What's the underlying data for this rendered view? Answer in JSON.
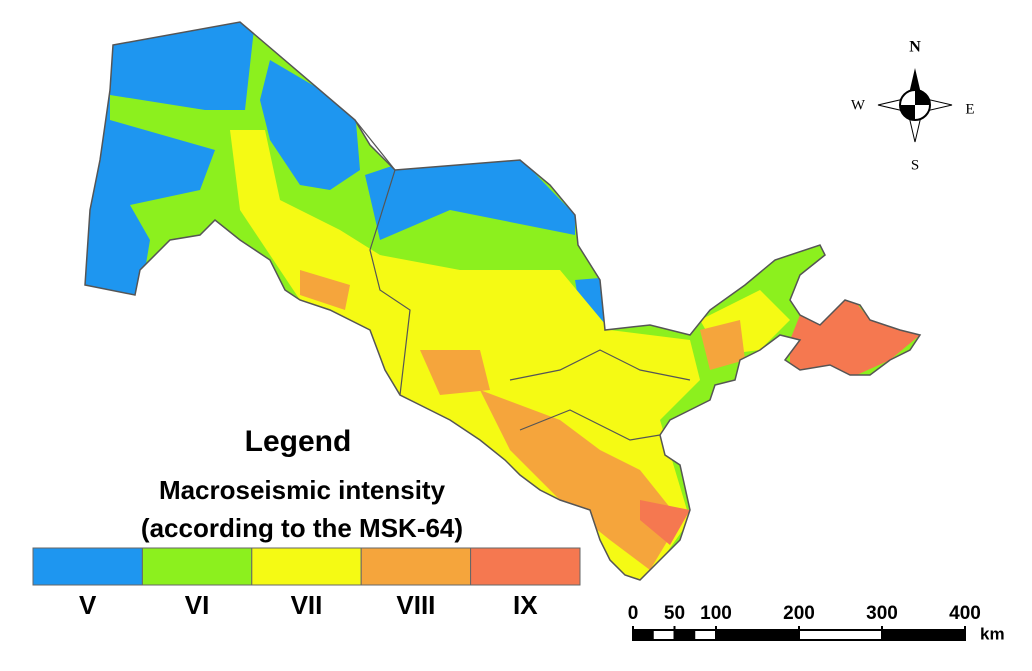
{
  "legend": {
    "title": "Legend",
    "subtitle_lines": [
      "Macroseismic intensity",
      "(according to the MSK-64)"
    ],
    "classes": [
      {
        "label": "V",
        "color": "#1e96f0"
      },
      {
        "label": "VI",
        "color": "#8cf01e"
      },
      {
        "label": "VII",
        "color": "#f5fa14"
      },
      {
        "label": "VIII",
        "color": "#f5a53c"
      },
      {
        "label": "IX",
        "color": "#f57850"
      }
    ]
  },
  "compass": {
    "north": "N",
    "west": "W",
    "east": "E",
    "south": "S"
  },
  "scale_bar": {
    "ticks": [
      0,
      50,
      100,
      200,
      300,
      400
    ],
    "unit": "km"
  }
}
